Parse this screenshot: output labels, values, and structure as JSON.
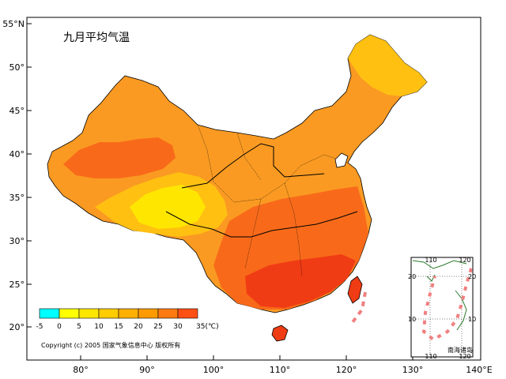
{
  "map": {
    "title": "九月平均气温",
    "copyright": "Copyright (c) 2005 国家气象信息中心 版权所有",
    "lat_ticks": [
      "55°N",
      "50°",
      "45°",
      "40°",
      "35°",
      "30°",
      "25°",
      "20°"
    ],
    "lon_ticks": [
      "80°",
      "90°",
      "100°",
      "110°",
      "120°",
      "130°",
      "140°E"
    ],
    "colors": {
      "background": "#ffffff",
      "very_warm": "#f03c14",
      "warm": "#f86a1a",
      "mild": "#fa9a22",
      "cool": "#ffc012",
      "cold": "#ffe600",
      "ocean_outline": "#000000"
    }
  },
  "legend": {
    "labels": [
      "-5",
      "0",
      "5",
      "10",
      "15",
      "20",
      "25",
      "30",
      "35(℃)"
    ],
    "colors": [
      "#00ffff",
      "#ffff00",
      "#ffe600",
      "#ffcc00",
      "#ffb000",
      "#ff9a00",
      "#ff7a10",
      "#ff5014",
      "#ff2020"
    ]
  },
  "inset": {
    "label": "南海诸岛",
    "top_ticks": [
      "110",
      "120"
    ],
    "bottom_ticks": [
      "110",
      "120"
    ],
    "left_ticks": [
      "20",
      "10"
    ],
    "right_ticks": [
      "20",
      "10"
    ]
  }
}
